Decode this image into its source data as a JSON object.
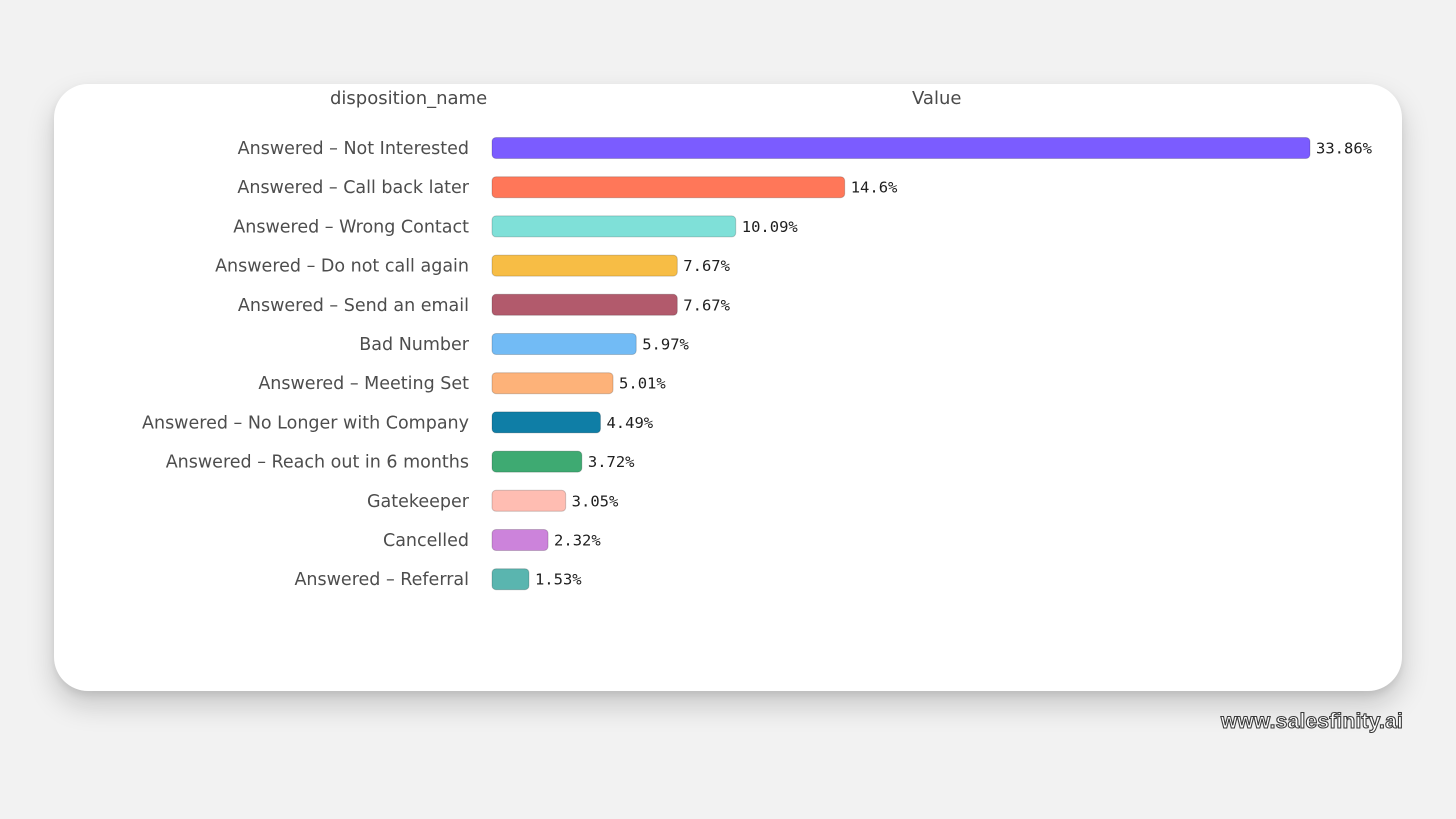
{
  "header": {
    "category_column": "disposition_name",
    "value_column": "Value"
  },
  "watermark": "www.salesfinity.ai",
  "chart_data": {
    "type": "bar",
    "orientation": "horizontal",
    "title": "",
    "xlabel": "",
    "ylabel": "",
    "grid": false,
    "legend": "none",
    "xlim": [
      0,
      35
    ],
    "categories": [
      "Answered – Not Interested",
      "Answered – Call back later",
      "Answered – Wrong Contact",
      "Answered – Do not call again",
      "Answered – Send an email",
      "Bad Number",
      "Answered – Meeting Set",
      "Answered – No Longer with Company",
      "Answered – Reach out in 6 months",
      "Gatekeeper",
      "Cancelled",
      "Answered – Referral"
    ],
    "values": [
      33.86,
      14.6,
      10.09,
      7.67,
      7.67,
      5.97,
      5.01,
      4.49,
      3.72,
      3.05,
      2.32,
      1.53
    ],
    "value_labels": [
      "33.86%",
      "14.6%",
      "10.09%",
      "7.67%",
      "7.67%",
      "5.97%",
      "5.01%",
      "4.49%",
      "3.72%",
      "3.05%",
      "2.32%",
      "1.53%"
    ],
    "colors": [
      "#7b5cff",
      "#ff7759",
      "#7fe0d8",
      "#f7bd45",
      "#b25a6c",
      "#72bbf5",
      "#fdb279",
      "#0f7ea6",
      "#3eaa72",
      "#ffbdb2",
      "#cc83db",
      "#5ab5af"
    ]
  }
}
